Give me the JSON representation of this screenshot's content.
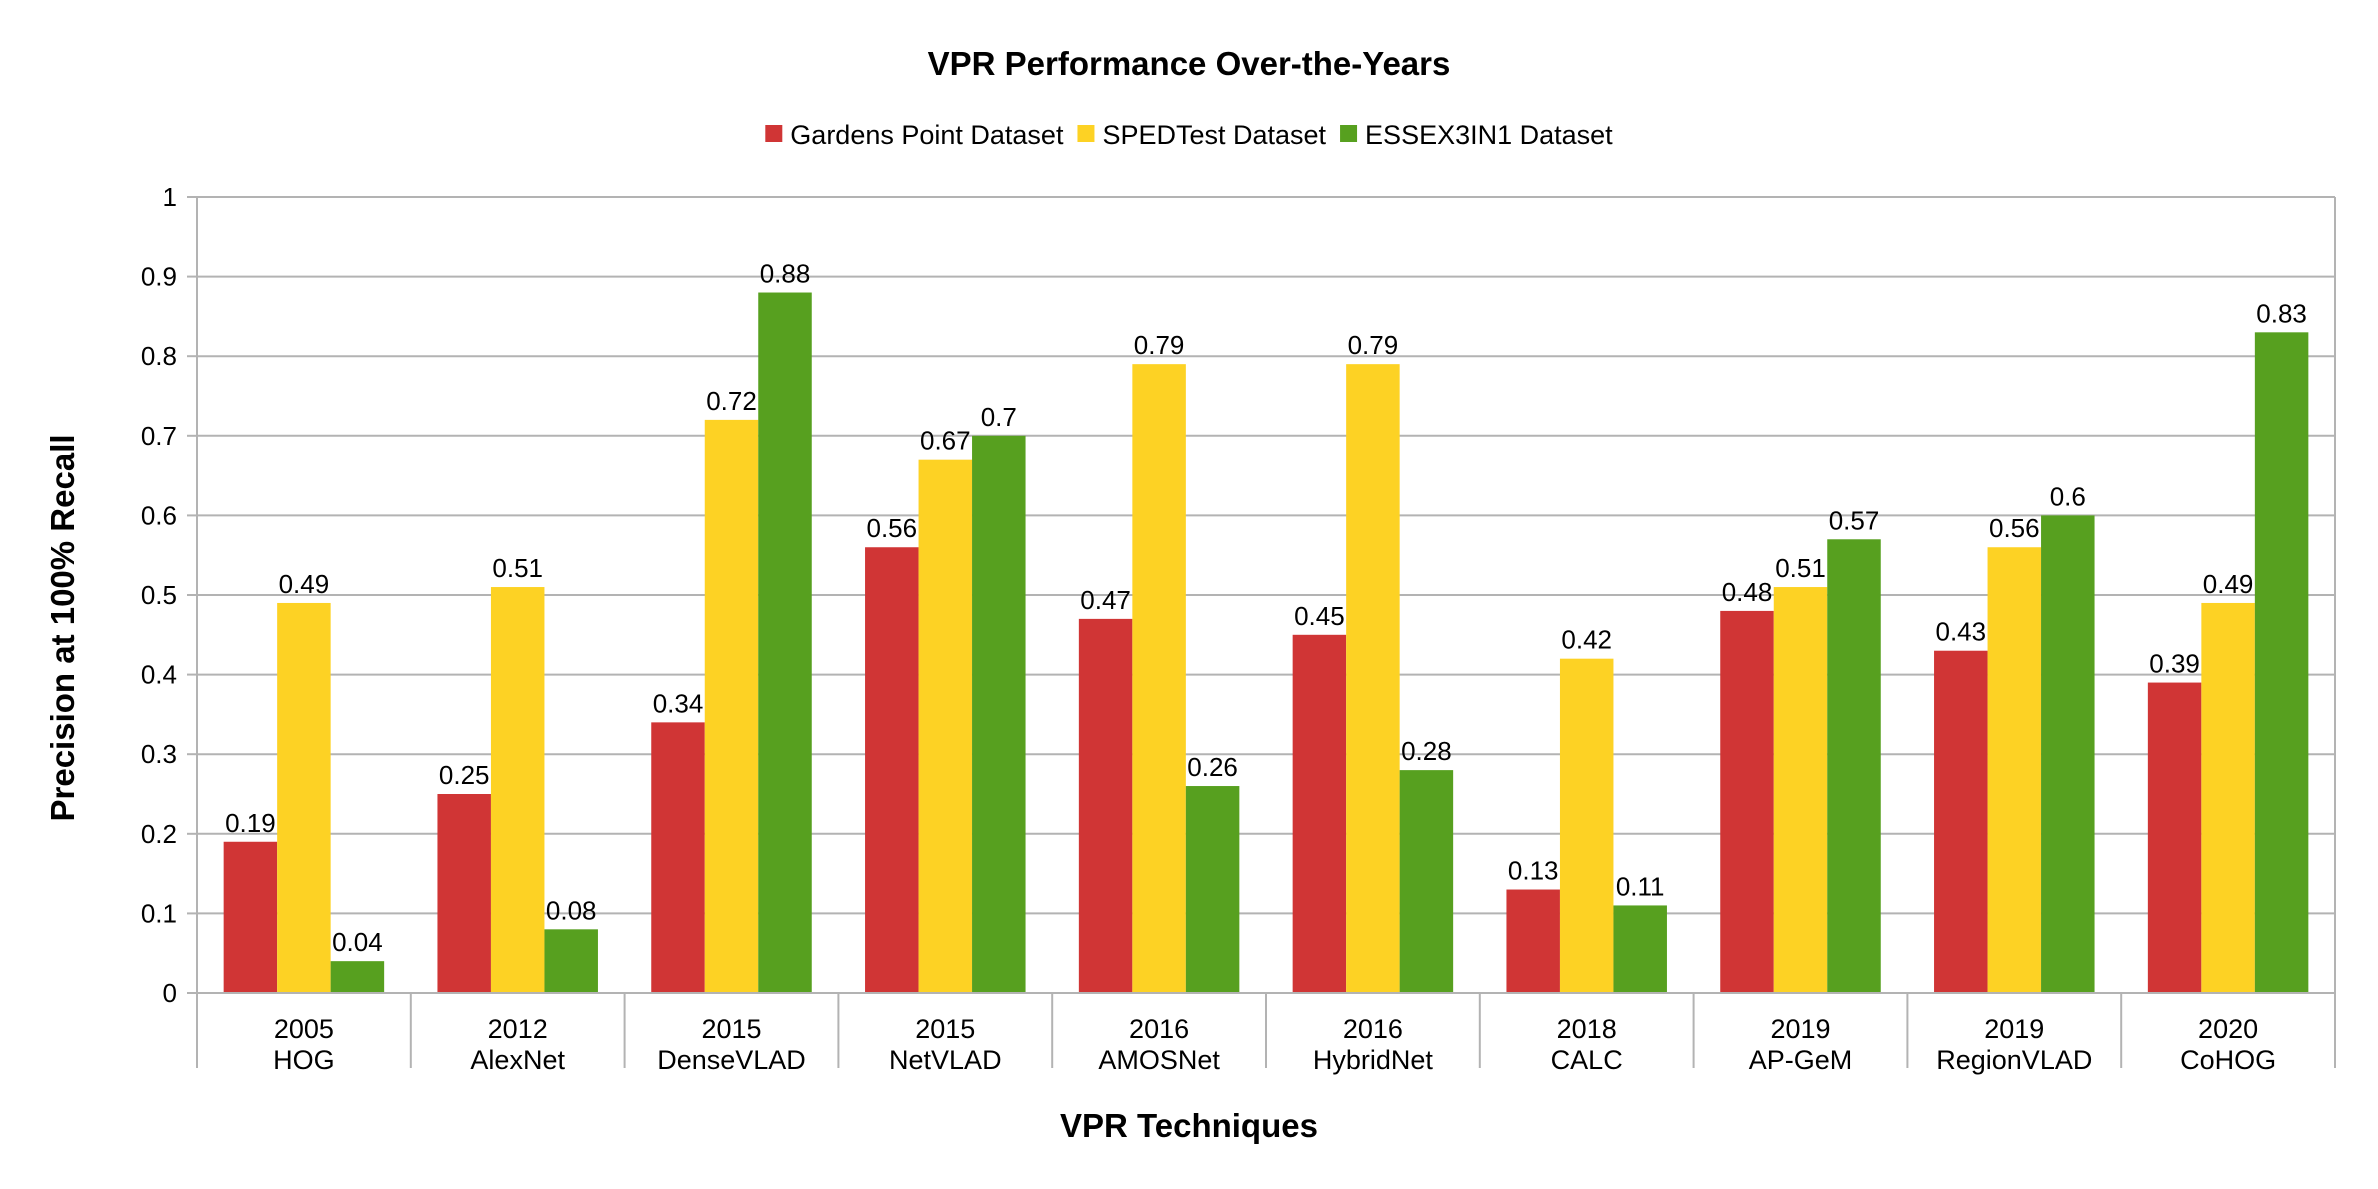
{
  "chart_data": {
    "type": "bar",
    "title": "VPR Performance Over-the-Years",
    "xlabel": "VPR Techniques",
    "ylabel": "Precision at 100% Recall",
    "ylim": [
      0,
      1
    ],
    "yticks": [
      "0",
      "0.1",
      "0.2",
      "0.3",
      "0.4",
      "0.5",
      "0.6",
      "0.7",
      "0.8",
      "0.9",
      "1"
    ],
    "grid": true,
    "legend_position": "top-center",
    "categories": [
      {
        "year": "2005",
        "name": "HOG"
      },
      {
        "year": "2012",
        "name": "AlexNet"
      },
      {
        "year": "2015",
        "name": "DenseVLAD"
      },
      {
        "year": "2015",
        "name": "NetVLAD"
      },
      {
        "year": "2016",
        "name": "AMOSNet"
      },
      {
        "year": "2016",
        "name": "HybridNet"
      },
      {
        "year": "2018",
        "name": "CALC"
      },
      {
        "year": "2019",
        "name": "AP-GeM"
      },
      {
        "year": "2019",
        "name": "RegionVLAD"
      },
      {
        "year": "2020",
        "name": "CoHOG"
      }
    ],
    "series": [
      {
        "name": "Gardens Point Dataset",
        "color": "#d03535",
        "values": [
          0.19,
          0.25,
          0.34,
          0.56,
          0.47,
          0.45,
          0.13,
          0.48,
          0.43,
          0.39
        ],
        "labels": [
          "0.19",
          "0.25",
          "0.34",
          "0.56",
          "0.47",
          "0.45",
          "0.13",
          "0.48",
          "0.43",
          "0.39"
        ]
      },
      {
        "name": "SPEDTest Dataset",
        "color": "#fdd224",
        "values": [
          0.49,
          0.51,
          0.72,
          0.67,
          0.79,
          0.79,
          0.42,
          0.51,
          0.56,
          0.49
        ],
        "labels": [
          "0.49",
          "0.51",
          "0.72",
          "0.67",
          "0.79",
          "0.79",
          "0.42",
          "0.51",
          "0.56",
          "0.49"
        ]
      },
      {
        "name": "ESSEX3IN1 Dataset",
        "color": "#57a01f",
        "values": [
          0.04,
          0.08,
          0.88,
          0.7,
          0.26,
          0.28,
          0.11,
          0.57,
          0.6,
          0.83
        ],
        "labels": [
          "0.04",
          "0.08",
          "0.88",
          "0.7",
          "0.26",
          "0.28",
          "0.11",
          "0.57",
          "0.6",
          "0.83"
        ]
      }
    ]
  }
}
